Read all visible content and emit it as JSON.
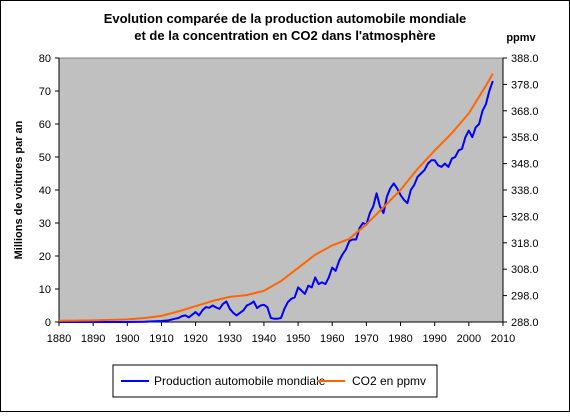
{
  "chart_data": {
    "type": "line",
    "title": "Evolution comparée de la production automobile mondiale\net de la concentration en CO2 dans l'atmosphère",
    "title_lines": [
      "Evolution comparée de la production automobile mondiale",
      "et de la concentration en CO2 dans l'atmosphère"
    ],
    "xlabel": "",
    "ylabel": "Millions de voitures par an",
    "y2label": "ppmv",
    "xlim": [
      1880,
      2010
    ],
    "ylim": [
      0,
      80
    ],
    "y2lim": [
      288.0,
      388.0
    ],
    "x_ticks": [
      "1880",
      "1890",
      "1900",
      "1910",
      "1920",
      "1930",
      "1940",
      "1950",
      "1960",
      "1970",
      "1980",
      "1990",
      "2000",
      "2010"
    ],
    "y_ticks": [
      "0",
      "10",
      "20",
      "30",
      "40",
      "50",
      "60",
      "70",
      "80"
    ],
    "y2_ticks": [
      "288.0",
      "298.0",
      "308.0",
      "318.0",
      "328.0",
      "338.0",
      "348.0",
      "358.0",
      "368.0",
      "378.0",
      "388.0"
    ],
    "grid": false,
    "plot_background": "#c0c0c0",
    "legend_position": "bottom",
    "series": [
      {
        "name": "Production automobile mondiale",
        "axis": "left",
        "color": "#0000ff",
        "x": [
          1880,
          1895,
          1900,
          1905,
          1910,
          1912,
          1914,
          1915,
          1916,
          1917,
          1918,
          1919,
          1920,
          1921,
          1922,
          1923,
          1924,
          1925,
          1926,
          1927,
          1928,
          1929,
          1930,
          1931,
          1932,
          1933,
          1934,
          1935,
          1936,
          1937,
          1938,
          1939,
          1940,
          1941,
          1942,
          1943,
          1944,
          1945,
          1946,
          1947,
          1948,
          1949,
          1950,
          1951,
          1952,
          1953,
          1954,
          1955,
          1956,
          1957,
          1958,
          1959,
          1960,
          1961,
          1962,
          1963,
          1964,
          1965,
          1966,
          1967,
          1968,
          1969,
          1970,
          1971,
          1972,
          1973,
          1974,
          1975,
          1976,
          1977,
          1978,
          1979,
          1980,
          1981,
          1982,
          1983,
          1984,
          1985,
          1986,
          1987,
          1988,
          1989,
          1990,
          1991,
          1992,
          1993,
          1994,
          1995,
          1996,
          1997,
          1998,
          1999,
          2000,
          2001,
          2002,
          2003,
          2004,
          2005,
          2006,
          2007
        ],
        "values": [
          0,
          0,
          0,
          0.1,
          0.3,
          0.5,
          1,
          1.2,
          1.8,
          2,
          1.4,
          2.2,
          3,
          2,
          3.5,
          4.5,
          4.3,
          5,
          4.4,
          4,
          5.5,
          6.2,
          4,
          2.8,
          2,
          2.8,
          3.5,
          5,
          5.5,
          6.2,
          4.2,
          5,
          5.2,
          4.5,
          1.2,
          1,
          1,
          1.2,
          4,
          6,
          7,
          7.5,
          10.5,
          9.5,
          8.5,
          11,
          10.5,
          13.5,
          11.5,
          12,
          11.5,
          13.5,
          16.5,
          15.5,
          18.5,
          20.5,
          22,
          24.5,
          25,
          25,
          28.5,
          30,
          29.5,
          33,
          35,
          39,
          35,
          33,
          38,
          40.5,
          42,
          40.5,
          38.5,
          37,
          36,
          40,
          41.5,
          44,
          45,
          46,
          48,
          49,
          49,
          47.5,
          47,
          48,
          47,
          49.5,
          50,
          52,
          52.5,
          56,
          58,
          56,
          59,
          60,
          64,
          66,
          70,
          73
        ]
      },
      {
        "name": "CO2 en ppmv",
        "axis": "right",
        "color": "#ff6600",
        "x": [
          1880,
          1890,
          1900,
          1905,
          1910,
          1915,
          1920,
          1925,
          1930,
          1935,
          1940,
          1945,
          1950,
          1955,
          1960,
          1965,
          1970,
          1975,
          1980,
          1985,
          1990,
          1995,
          2000,
          2005,
          2007
        ],
        "values": [
          288.5,
          288.6,
          289.0,
          289.5,
          290.3,
          292.0,
          294.0,
          296.0,
          297.5,
          298.2,
          299.8,
          303.5,
          308.5,
          313.5,
          317.0,
          319.5,
          325.0,
          331.5,
          338.0,
          346.0,
          353.0,
          359.5,
          367.0,
          377.5,
          382.0
        ]
      }
    ]
  }
}
